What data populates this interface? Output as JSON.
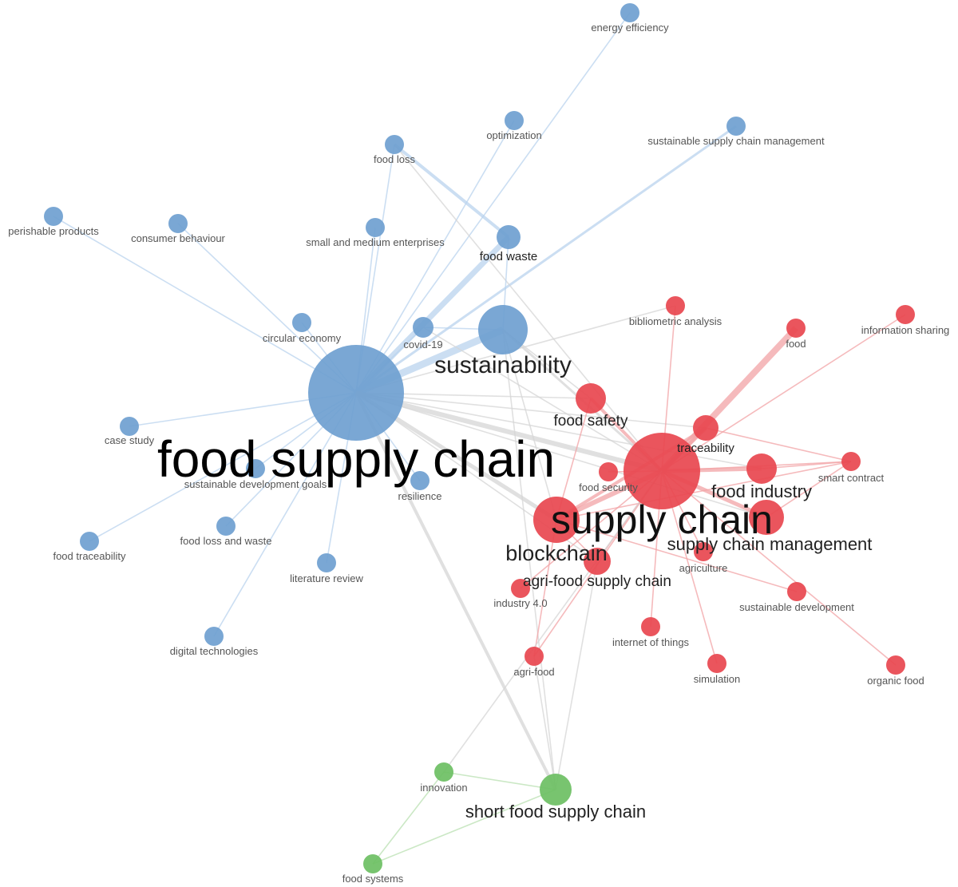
{
  "colors": {
    "cluster_1": "#6f9fd0",
    "cluster_2": "#e8474f",
    "cluster_3": "#6dbf63",
    "edge_1": "#b9d3ee",
    "edge_2": "#f2a3a6",
    "edge_3": "#b9e0b2",
    "edge_mixed": "#d6d6d6"
  },
  "nodes": [
    {
      "id": "food supply chain",
      "label": "food supply chain",
      "cluster": 1
    },
    {
      "id": "sustainability",
      "label": "sustainability",
      "cluster": 1
    },
    {
      "id": "food waste",
      "label": "food waste",
      "cluster": 1
    },
    {
      "id": "covid-19",
      "label": "covid-19",
      "cluster": 1
    },
    {
      "id": "energy efficiency",
      "label": "energy efficiency",
      "cluster": 1
    },
    {
      "id": "optimization",
      "label": "optimization",
      "cluster": 1
    },
    {
      "id": "food loss",
      "label": "food loss",
      "cluster": 1
    },
    {
      "id": "sustainable supply chain management",
      "label": "sustainable supply chain management",
      "cluster": 1
    },
    {
      "id": "perishable products",
      "label": "perishable products",
      "cluster": 1
    },
    {
      "id": "consumer behaviour",
      "label": "consumer behaviour",
      "cluster": 1
    },
    {
      "id": "small and medium enterprises",
      "label": "small and medium enterprises",
      "cluster": 1
    },
    {
      "id": "circular economy",
      "label": "circular economy",
      "cluster": 1
    },
    {
      "id": "case study",
      "label": "case study",
      "cluster": 1
    },
    {
      "id": "sustainable development goals",
      "label": "sustainable development goals",
      "cluster": 1
    },
    {
      "id": "resilience",
      "label": "resilience",
      "cluster": 1
    },
    {
      "id": "food loss and waste",
      "label": "food loss and waste",
      "cluster": 1
    },
    {
      "id": "food traceability",
      "label": "food traceability",
      "cluster": 1
    },
    {
      "id": "literature review",
      "label": "literature review",
      "cluster": 1
    },
    {
      "id": "digital technologies",
      "label": "digital technologies",
      "cluster": 1
    },
    {
      "id": "supply chain",
      "label": "supply chain",
      "cluster": 2
    },
    {
      "id": "blockchain",
      "label": "blockchain",
      "cluster": 2
    },
    {
      "id": "supply chain management",
      "label": "supply chain management",
      "cluster": 2
    },
    {
      "id": "food safety",
      "label": "food safety",
      "cluster": 2
    },
    {
      "id": "traceability",
      "label": "traceability",
      "cluster": 2
    },
    {
      "id": "food industry",
      "label": "food industry",
      "cluster": 2
    },
    {
      "id": "agri-food supply chain",
      "label": "agri-food supply chain",
      "cluster": 2
    },
    {
      "id": "food security",
      "label": "food security",
      "cluster": 2
    },
    {
      "id": "bibliometric analysis",
      "label": "bibliometric analysis",
      "cluster": 2
    },
    {
      "id": "food",
      "label": "food",
      "cluster": 2
    },
    {
      "id": "information sharing",
      "label": "information sharing",
      "cluster": 2
    },
    {
      "id": "smart contract",
      "label": "smart contract",
      "cluster": 2
    },
    {
      "id": "agriculture",
      "label": "agriculture",
      "cluster": 2
    },
    {
      "id": "industry 4.0",
      "label": "industry 4.0",
      "cluster": 2
    },
    {
      "id": "sustainable development",
      "label": "sustainable development",
      "cluster": 2
    },
    {
      "id": "internet of things",
      "label": "internet of things",
      "cluster": 2
    },
    {
      "id": "agri-food",
      "label": "agri-food",
      "cluster": 2
    },
    {
      "id": "simulation",
      "label": "simulation",
      "cluster": 2
    },
    {
      "id": "organic food",
      "label": "organic food",
      "cluster": 2
    },
    {
      "id": "short food supply chain",
      "label": "short food supply chain",
      "cluster": 3
    },
    {
      "id": "innovation",
      "label": "innovation",
      "cluster": 3
    },
    {
      "id": "food systems",
      "label": "food systems",
      "cluster": 3
    }
  ],
  "links": [
    {
      "source": "food supply chain",
      "target": "sustainability"
    },
    {
      "source": "food supply chain",
      "target": "food waste"
    },
    {
      "source": "food supply chain",
      "target": "covid-19"
    },
    {
      "source": "food supply chain",
      "target": "energy efficiency"
    },
    {
      "source": "food supply chain",
      "target": "optimization"
    },
    {
      "source": "food supply chain",
      "target": "food loss"
    },
    {
      "source": "food supply chain",
      "target": "sustainable supply chain management"
    },
    {
      "source": "food supply chain",
      "target": "perishable products"
    },
    {
      "source": "food supply chain",
      "target": "consumer behaviour"
    },
    {
      "source": "food supply chain",
      "target": "small and medium enterprises"
    },
    {
      "source": "food supply chain",
      "target": "circular economy"
    },
    {
      "source": "food supply chain",
      "target": "case study"
    },
    {
      "source": "food supply chain",
      "target": "sustainable development goals"
    },
    {
      "source": "food supply chain",
      "target": "resilience"
    },
    {
      "source": "food supply chain",
      "target": "food loss and waste"
    },
    {
      "source": "food supply chain",
      "target": "food traceability"
    },
    {
      "source": "food supply chain",
      "target": "literature review"
    },
    {
      "source": "food supply chain",
      "target": "digital technologies"
    },
    {
      "source": "food supply chain",
      "target": "supply chain"
    },
    {
      "source": "food supply chain",
      "target": "blockchain"
    },
    {
      "source": "food supply chain",
      "target": "food safety"
    },
    {
      "source": "food supply chain",
      "target": "traceability"
    },
    {
      "source": "food supply chain",
      "target": "food industry"
    },
    {
      "source": "food supply chain",
      "target": "supply chain management"
    },
    {
      "source": "food supply chain",
      "target": "short food supply chain"
    },
    {
      "source": "food supply chain",
      "target": "agri-food supply chain"
    },
    {
      "source": "food loss",
      "target": "food waste"
    },
    {
      "source": "food loss",
      "target": "supply chain"
    },
    {
      "source": "sustainability",
      "target": "covid-19"
    },
    {
      "source": "sustainability",
      "target": "supply chain"
    },
    {
      "source": "sustainability",
      "target": "blockchain"
    },
    {
      "source": "sustainability",
      "target": "short food supply chain"
    },
    {
      "source": "sustainability",
      "target": "food safety"
    },
    {
      "source": "sustainability",
      "target": "food waste"
    },
    {
      "source": "covid-19",
      "target": "supply chain"
    },
    {
      "source": "bibliometric analysis",
      "target": "supply chain"
    },
    {
      "source": "bibliometric analysis",
      "target": "food supply chain"
    },
    {
      "source": "supply chain",
      "target": "food"
    },
    {
      "source": "supply chain",
      "target": "information sharing"
    },
    {
      "source": "supply chain",
      "target": "traceability"
    },
    {
      "source": "supply chain",
      "target": "food industry"
    },
    {
      "source": "supply chain",
      "target": "smart contract"
    },
    {
      "source": "supply chain",
      "target": "food safety"
    },
    {
      "source": "supply chain",
      "target": "blockchain"
    },
    {
      "source": "supply chain",
      "target": "supply chain management"
    },
    {
      "source": "supply chain",
      "target": "food security"
    },
    {
      "source": "supply chain",
      "target": "agriculture"
    },
    {
      "source": "supply chain",
      "target": "agri-food supply chain"
    },
    {
      "source": "supply chain",
      "target": "internet of things"
    },
    {
      "source": "supply chain",
      "target": "simulation"
    },
    {
      "source": "supply chain",
      "target": "organic food"
    },
    {
      "source": "supply chain",
      "target": "industry 4.0"
    },
    {
      "source": "supply chain",
      "target": "agri-food"
    },
    {
      "source": "blockchain",
      "target": "traceability"
    },
    {
      "source": "blockchain",
      "target": "smart contract"
    },
    {
      "source": "blockchain",
      "target": "food safety"
    },
    {
      "source": "blockchain",
      "target": "agri-food supply chain"
    },
    {
      "source": "blockchain",
      "target": "sustainable development"
    },
    {
      "source": "blockchain",
      "target": "agri-food"
    },
    {
      "source": "traceability",
      "target": "smart contract"
    },
    {
      "source": "food industry",
      "target": "smart contract"
    },
    {
      "source": "supply chain management",
      "target": "smart contract"
    },
    {
      "source": "agri-food",
      "target": "short food supply chain"
    },
    {
      "source": "agri-food supply chain",
      "target": "short food supply chain"
    },
    {
      "source": "short food supply chain",
      "target": "innovation"
    },
    {
      "source": "short food supply chain",
      "target": "food systems"
    },
    {
      "source": "innovation",
      "target": "food systems"
    },
    {
      "source": "innovation",
      "target": "supply chain"
    }
  ]
}
